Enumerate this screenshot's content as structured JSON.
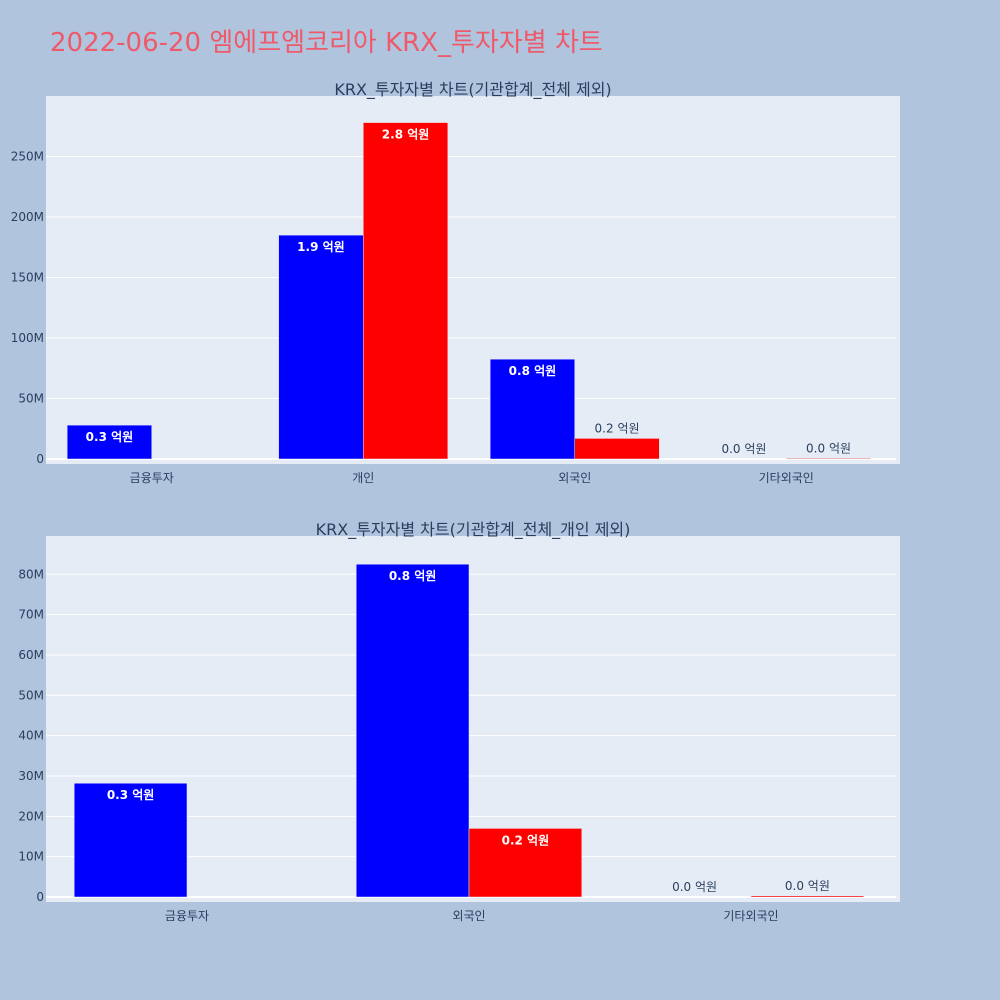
{
  "page_title": "2022-06-20 엠에프엠코리아 KRX_투자자별 차트",
  "colors": {
    "background": "#b0c4de",
    "plot_bg": "#e5ecf6",
    "title": "#ef5a6b",
    "text": "#2a3f5f",
    "buy": "#0000ff",
    "sell": "#ff0000",
    "grid": "#ffffff"
  },
  "chart_data": [
    {
      "type": "bar",
      "title": "KRX_투자자별 차트(기관합계_전체 제외)",
      "categories": [
        "금융투자",
        "개인",
        "외국인",
        "기타외국인"
      ],
      "series": [
        {
          "color": "#0000ff",
          "values": [
            28000000,
            185000000,
            82500000,
            0
          ],
          "labels": [
            "0.3 억원",
            "1.9 억원",
            "0.8 억원",
            "0.0 억원"
          ]
        },
        {
          "color": "#ff0000",
          "values": [
            0,
            278000000,
            17000000,
            600000
          ],
          "labels": [
            "",
            "2.8 억원",
            "0.2 억원",
            "0.0 억원"
          ]
        }
      ],
      "ylim": [
        0,
        295000000
      ],
      "yticks": [
        0,
        50000000,
        100000000,
        150000000,
        200000000,
        250000000
      ],
      "ytick_labels": [
        "0",
        "50M",
        "100M",
        "150M",
        "200M",
        "250M"
      ],
      "grid": true,
      "xlabel": "",
      "ylabel": ""
    },
    {
      "type": "bar",
      "title": "KRX_투자자별 차트(기관합계_전체_개인 제외)",
      "categories": [
        "금융투자",
        "외국인",
        "기타외국인"
      ],
      "series": [
        {
          "color": "#0000ff",
          "values": [
            28200000,
            82500000,
            0
          ],
          "labels": [
            "0.3 억원",
            "0.8 억원",
            "0.0 억원"
          ]
        },
        {
          "color": "#ff0000",
          "values": [
            0,
            17000000,
            300000
          ],
          "labels": [
            "",
            "0.2 억원",
            "0.0 억원"
          ]
        }
      ],
      "ylim": [
        0,
        88000000
      ],
      "yticks": [
        0,
        10000000,
        20000000,
        30000000,
        40000000,
        50000000,
        60000000,
        70000000,
        80000000
      ],
      "ytick_labels": [
        "0",
        "10M",
        "20M",
        "30M",
        "40M",
        "50M",
        "60M",
        "70M",
        "80M"
      ],
      "grid": true,
      "xlabel": "",
      "ylabel": ""
    }
  ]
}
